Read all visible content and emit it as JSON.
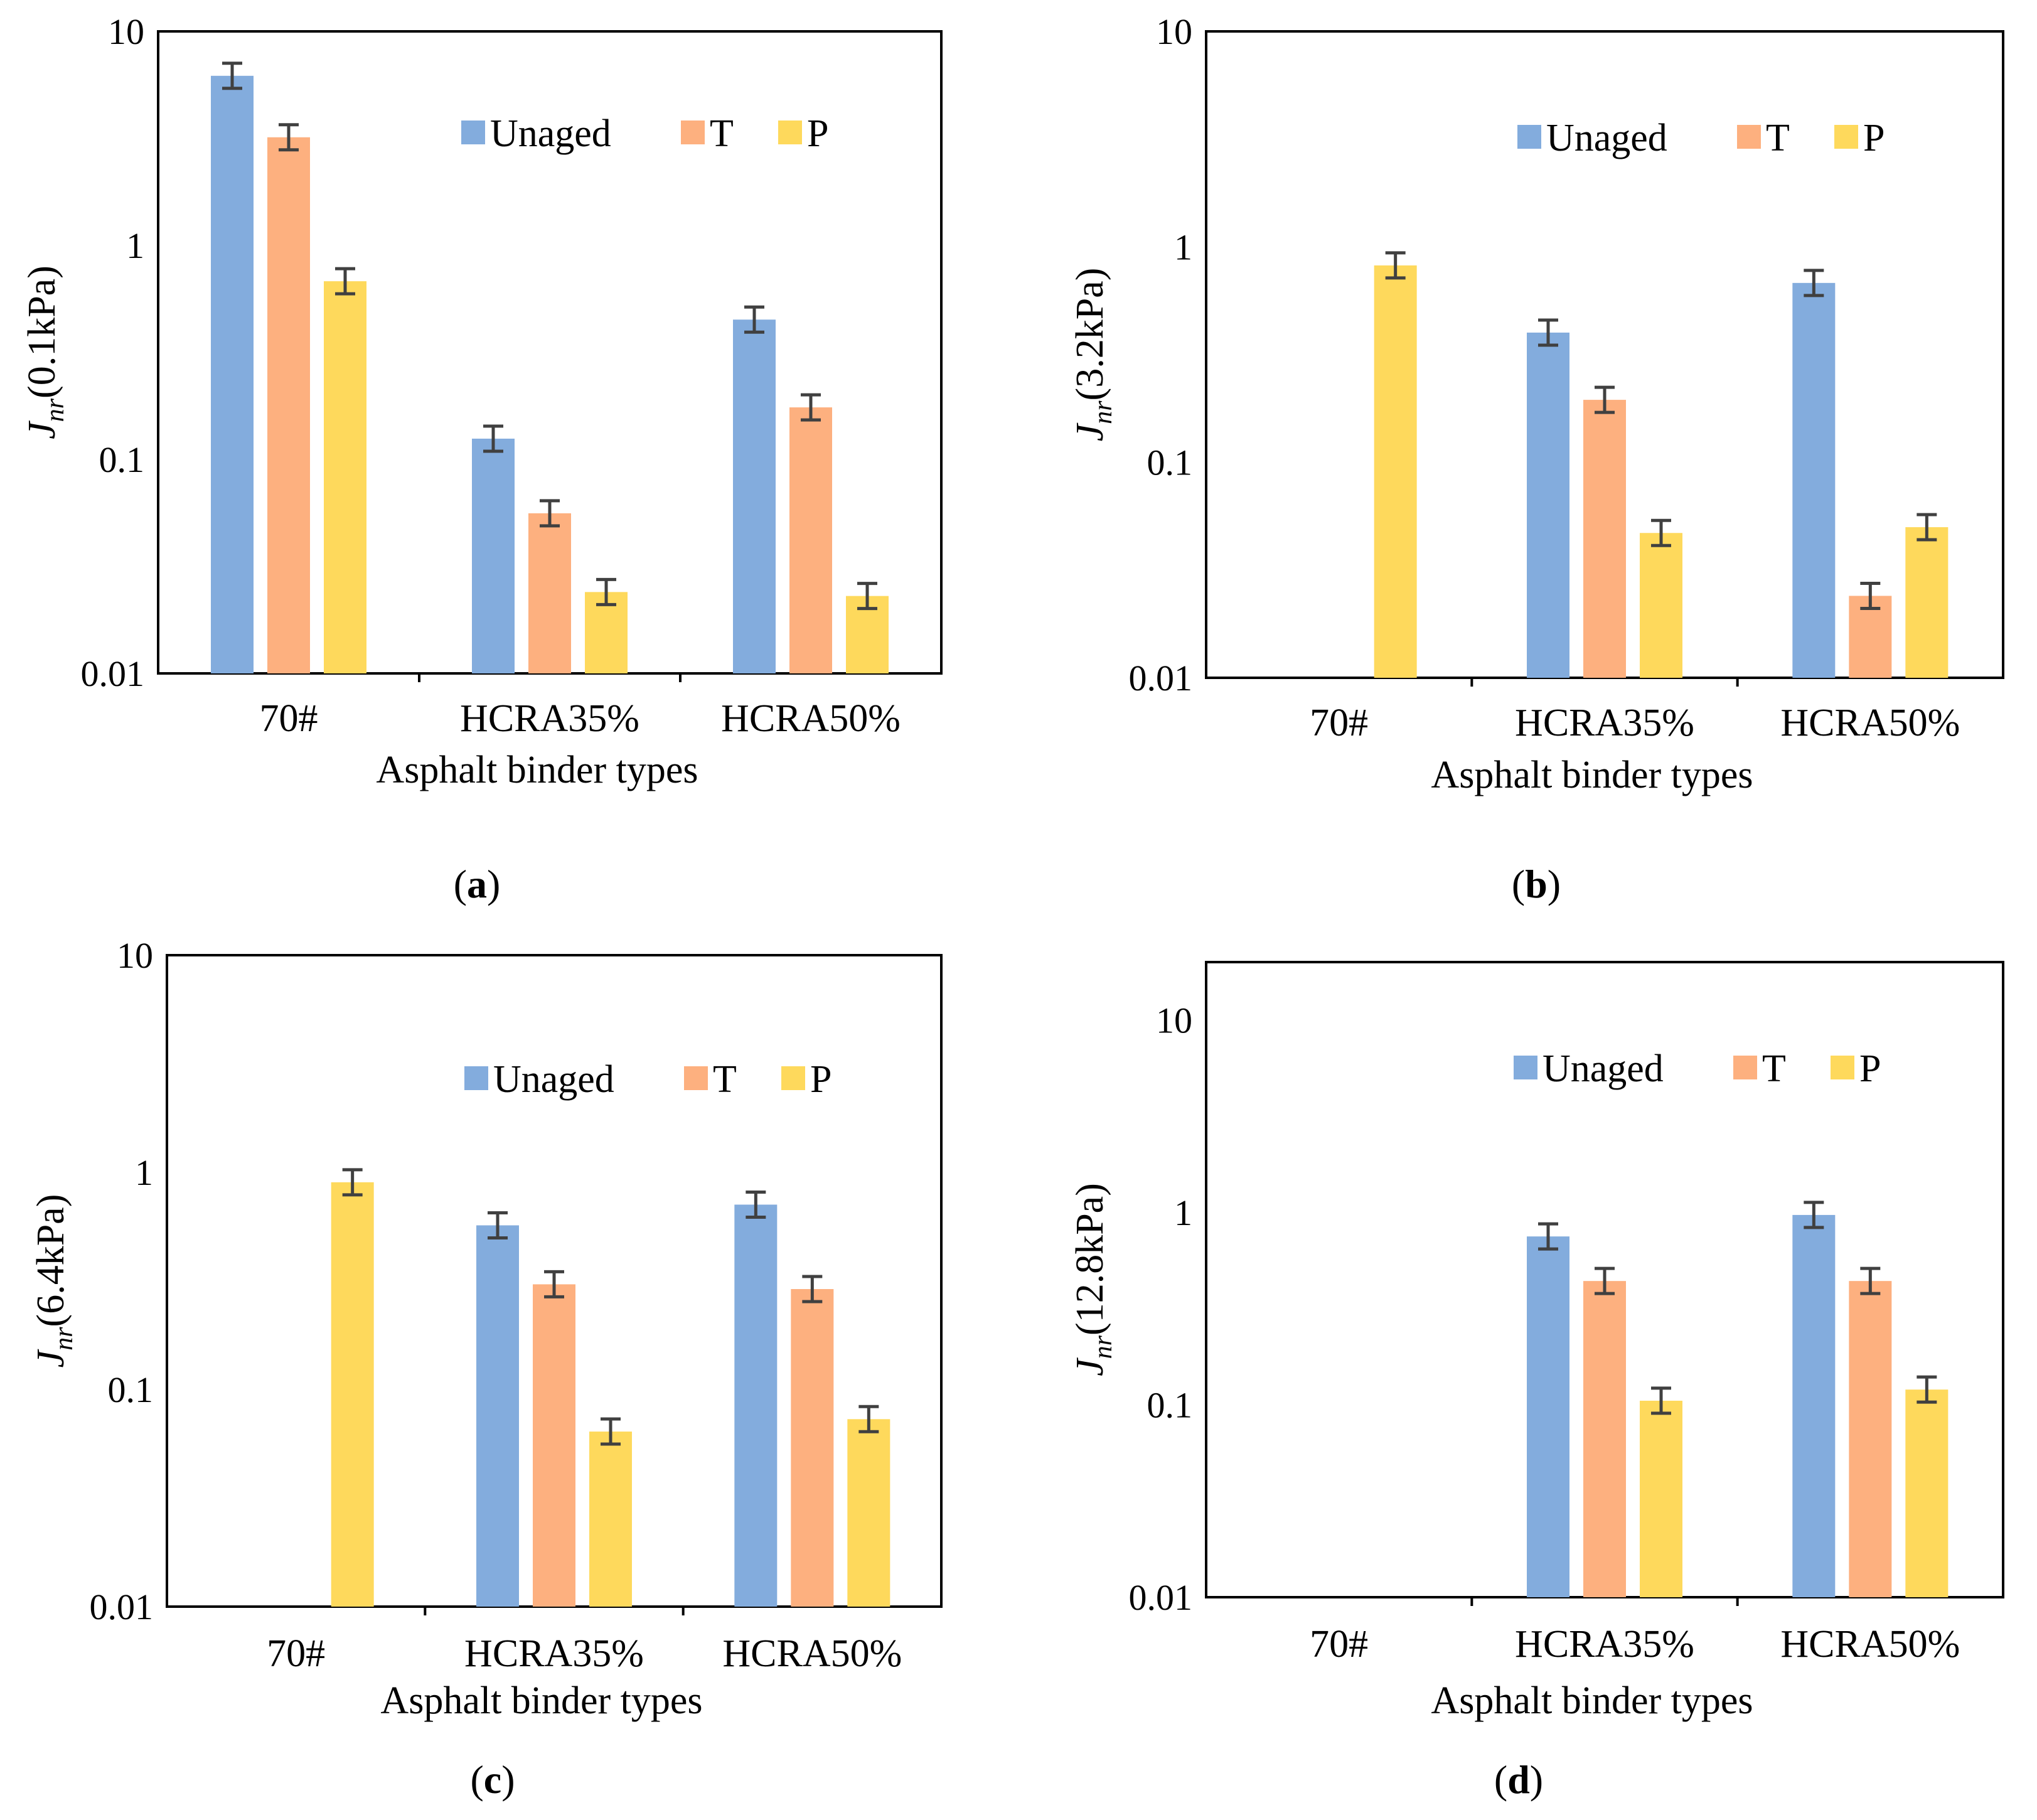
{
  "legend": [
    "Unaged",
    "T",
    "P"
  ],
  "colors": {
    "Unaged": "#83acdd",
    "T": "#fdb07f",
    "P": "#fed95c",
    "error": "#404040"
  },
  "chart_data": [
    {
      "type": "bar",
      "panel": "(a)",
      "panel_letter": "a",
      "ylabel_main": "J",
      "ylabel_sub": "nr",
      "ylabel_rest": "(0.1kPa)",
      "xlabel": "Asphalt binder types",
      "yscale": "log",
      "ylim": [
        0.01,
        10
      ],
      "yticks": [
        "0.01",
        "0.1",
        "1",
        "10"
      ],
      "categories": [
        "70#",
        "HCRA35%",
        "HCRA50%"
      ],
      "series": [
        {
          "name": "Unaged",
          "values": [
            6.2,
            0.125,
            0.45
          ]
        },
        {
          "name": "T",
          "values": [
            3.2,
            0.056,
            0.175
          ]
        },
        {
          "name": "P",
          "values": [
            0.68,
            0.024,
            0.023
          ]
        }
      ]
    },
    {
      "type": "bar",
      "panel": "(b)",
      "panel_letter": "b",
      "ylabel_main": "J",
      "ylabel_sub": "nr",
      "ylabel_rest": "(3.2kPa)",
      "xlabel": "Asphalt binder types",
      "yscale": "log",
      "ylim": [
        0.01,
        10
      ],
      "yticks": [
        "0.01",
        "0.1",
        "1",
        "10"
      ],
      "categories": [
        "70#",
        "HCRA35%",
        "HCRA50%"
      ],
      "series": [
        {
          "name": "Unaged",
          "values": [
            null,
            0.4,
            0.68
          ]
        },
        {
          "name": "T",
          "values": [
            null,
            0.195,
            0.024
          ]
        },
        {
          "name": "P",
          "values": [
            0.82,
            0.047,
            0.05
          ]
        }
      ]
    },
    {
      "type": "bar",
      "panel": "(c)",
      "panel_letter": "c",
      "ylabel_main": "J",
      "ylabel_sub": "nr",
      "ylabel_rest": "(6.4kPa)",
      "xlabel": "Asphalt binder types",
      "yscale": "log",
      "ylim": [
        0.01,
        10
      ],
      "yticks": [
        "0.01",
        "0.1",
        "1",
        "10"
      ],
      "categories": [
        "70#",
        "HCRA35%",
        "HCRA50%"
      ],
      "series": [
        {
          "name": "Unaged",
          "values": [
            null,
            0.57,
            0.71
          ]
        },
        {
          "name": "T",
          "values": [
            null,
            0.305,
            0.29
          ]
        },
        {
          "name": "P",
          "values": [
            0.9,
            0.064,
            0.073
          ]
        }
      ]
    },
    {
      "type": "bar",
      "panel": "(d)",
      "panel_letter": "d",
      "ylabel_main": "J",
      "ylabel_sub": "nr",
      "ylabel_rest": "(12.8kPa)",
      "xlabel": "Asphalt binder types",
      "yscale": "log",
      "ylim": [
        0.01,
        20
      ],
      "yticks": [
        "0.01",
        "0.1",
        "1",
        "10"
      ],
      "categories": [
        "70#",
        "HCRA35%",
        "HCRA50%"
      ],
      "series": [
        {
          "name": "Unaged",
          "values": [
            null,
            0.75,
            0.97
          ]
        },
        {
          "name": "T",
          "values": [
            null,
            0.44,
            0.44
          ]
        },
        {
          "name": "P",
          "values": [
            null,
            0.105,
            0.12
          ]
        }
      ]
    }
  ]
}
